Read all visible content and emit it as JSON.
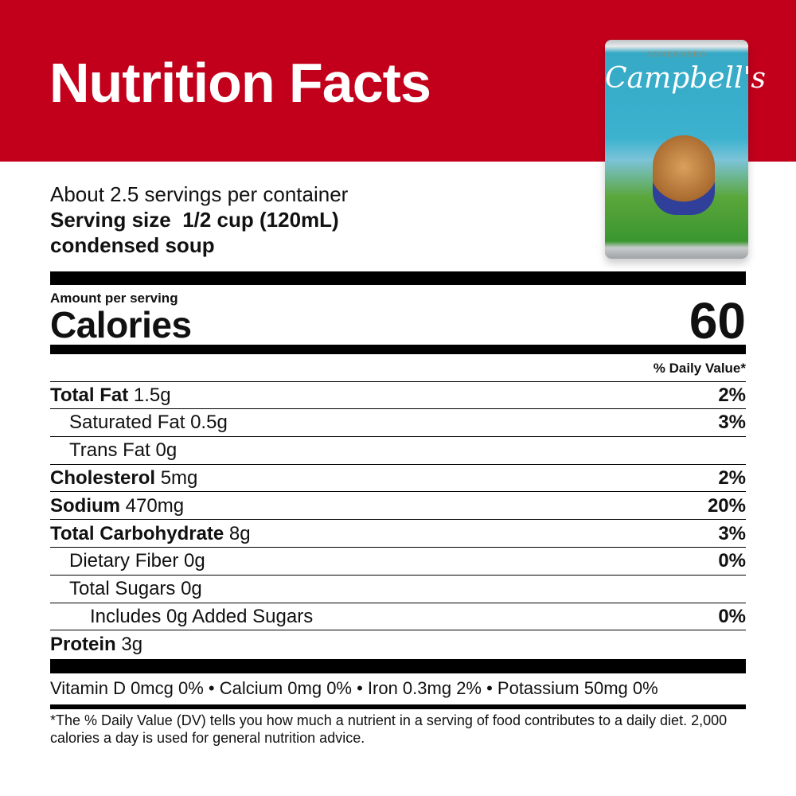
{
  "header": {
    "title": "Nutrition Facts",
    "background": "#c2001b"
  },
  "product_image": {
    "top_text": "CONDENSED",
    "brand": "Campbell's"
  },
  "servings": {
    "per_container": "About 2.5 servings per container",
    "size_label": "Serving size",
    "size_value": "1/2 cup (120mL)",
    "size_note": "condensed soup"
  },
  "calories": {
    "amount_label": "Amount per serving",
    "label": "Calories",
    "value": "60"
  },
  "dv_header": "% Daily Value*",
  "nutrients": [
    {
      "name": "Total Fat",
      "amount": "1.5g",
      "dv": "2%"
    },
    {
      "name": "Saturated Fat 0.5g",
      "amount": "",
      "dv": "3%"
    },
    {
      "name": "Trans Fat 0g",
      "amount": "",
      "dv": ""
    },
    {
      "name": "Cholesterol",
      "amount": "5mg",
      "dv": "2%"
    },
    {
      "name": "Sodium",
      "amount": "470mg",
      "dv": "20%"
    },
    {
      "name": "Total Carbohydrate",
      "amount": "8g",
      "dv": "3%"
    },
    {
      "name": "Dietary Fiber 0g",
      "amount": "",
      "dv": "0%"
    },
    {
      "name": "Total Sugars 0g",
      "amount": "",
      "dv": ""
    },
    {
      "name": "Includes 0g Added Sugars",
      "amount": "",
      "dv": "0%"
    },
    {
      "name": "Protein",
      "amount": "3g",
      "dv": ""
    }
  ],
  "vitamins": "Vitamin D 0mcg 0% • Calcium 0mg 0% • Iron 0.3mg 2% • Potassium 50mg 0%",
  "footnote": "*The % Daily Value (DV) tells you how much a nutrient in a serving of food contributes to a daily diet. 2,000 calories a day is used for general nutrition advice."
}
